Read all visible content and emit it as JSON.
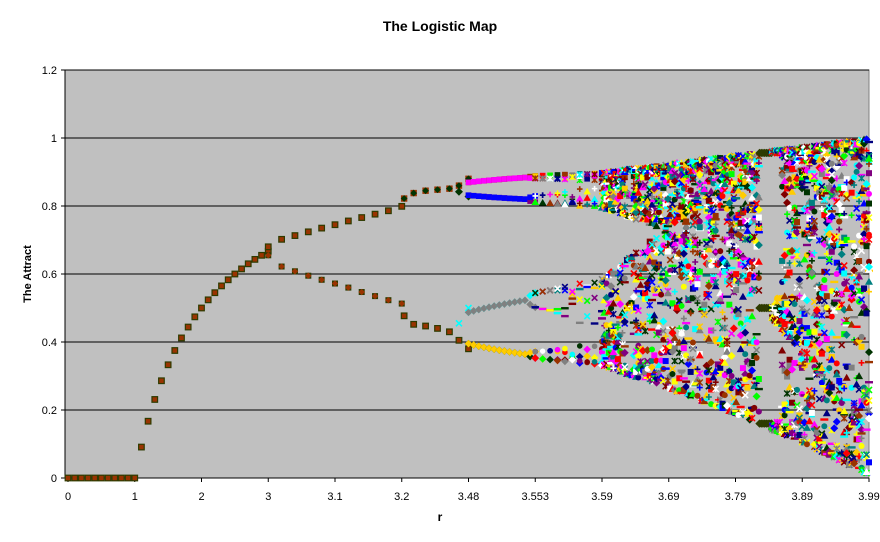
{
  "chart_data": {
    "type": "scatter",
    "title": "The Logistic Map",
    "xlabel": "r",
    "ylabel": "The Attract",
    "ylim": [
      0,
      1.2
    ],
    "yticks": [
      "0",
      "0.2",
      "0.4",
      "0.6",
      "0.8",
      "1",
      "1.2"
    ],
    "xticks": [
      "0",
      "1",
      "2",
      "3",
      "3.1",
      "3.2",
      "3.48",
      "3.553",
      "3.59",
      "3.69",
      "3.79",
      "3.89",
      "3.99"
    ],
    "grid": "horizontal major gridlines",
    "legend": "none",
    "plot_background": "#c0c0c0",
    "series_colors": [
      "#000080",
      "#ff00ff",
      "#ffff00",
      "#00ffff",
      "#800080",
      "#800000",
      "#008080",
      "#0000ff",
      "#ffcc00",
      "#ff0000",
      "#00ff00",
      "#003300",
      "#993300",
      "#808080",
      "#ffffff"
    ],
    "segments": [
      {
        "r_from": 0,
        "r_to": 1,
        "behavior": "fixed point at 0",
        "points": [
          [
            0,
            0
          ],
          [
            0.1,
            0
          ],
          [
            0.2,
            0
          ],
          [
            0.3,
            0
          ],
          [
            0.4,
            0
          ],
          [
            0.5,
            0
          ],
          [
            0.6,
            0
          ],
          [
            0.7,
            0
          ],
          [
            0.8,
            0
          ],
          [
            0.9,
            0
          ],
          [
            1.0,
            0
          ]
        ]
      },
      {
        "r_from": 1,
        "r_to": 3,
        "behavior": "single fixed point x = 1 - 1/r",
        "points": [
          [
            1.1,
            0.091
          ],
          [
            1.2,
            0.167
          ],
          [
            1.3,
            0.231
          ],
          [
            1.4,
            0.286
          ],
          [
            1.5,
            0.333
          ],
          [
            1.6,
            0.375
          ],
          [
            1.7,
            0.412
          ],
          [
            1.8,
            0.444
          ],
          [
            1.9,
            0.474
          ],
          [
            2.0,
            0.5
          ],
          [
            2.1,
            0.524
          ],
          [
            2.2,
            0.545
          ],
          [
            2.3,
            0.565
          ],
          [
            2.4,
            0.583
          ],
          [
            2.5,
            0.6
          ],
          [
            2.6,
            0.615
          ],
          [
            2.7,
            0.63
          ],
          [
            2.8,
            0.643
          ],
          [
            2.9,
            0.655
          ],
          [
            3.0,
            0.667
          ]
        ]
      },
      {
        "r_from": 3,
        "r_to": 3.2,
        "behavior": "period-2 branches",
        "upper": [
          [
            3.0,
            0.68
          ],
          [
            3.02,
            0.702
          ],
          [
            3.04,
            0.713
          ],
          [
            3.06,
            0.724
          ],
          [
            3.08,
            0.735
          ],
          [
            3.1,
            0.745
          ],
          [
            3.12,
            0.756
          ],
          [
            3.14,
            0.766
          ],
          [
            3.16,
            0.776
          ],
          [
            3.18,
            0.786
          ],
          [
            3.2,
            0.799
          ]
        ],
        "lower": [
          [
            3.0,
            0.655
          ],
          [
            3.02,
            0.622
          ],
          [
            3.04,
            0.608
          ],
          [
            3.06,
            0.595
          ],
          [
            3.08,
            0.583
          ],
          [
            3.1,
            0.572
          ],
          [
            3.12,
            0.56
          ],
          [
            3.14,
            0.547
          ],
          [
            3.16,
            0.535
          ],
          [
            3.18,
            0.523
          ],
          [
            3.2,
            0.513
          ]
        ]
      },
      {
        "r_from": 3.2,
        "r_to": 3.48,
        "behavior": "period-2 then period-4 splitting",
        "upper": [
          [
            3.21,
            0.822
          ],
          [
            3.25,
            0.838
          ],
          [
            3.3,
            0.845
          ],
          [
            3.35,
            0.848
          ],
          [
            3.4,
            0.851
          ],
          [
            3.44,
            0.86
          ],
          [
            3.48,
            0.88
          ]
        ],
        "upper_inner": [
          [
            3.44,
            0.842
          ],
          [
            3.48,
            0.828
          ]
        ],
        "lower": [
          [
            3.21,
            0.477
          ],
          [
            3.25,
            0.452
          ],
          [
            3.3,
            0.447
          ],
          [
            3.35,
            0.44
          ],
          [
            3.4,
            0.43
          ],
          [
            3.44,
            0.405
          ],
          [
            3.48,
            0.38
          ]
        ],
        "lower_inner": [
          [
            3.44,
            0.455
          ],
          [
            3.48,
            0.5
          ]
        ]
      },
      {
        "r_from": 3.48,
        "r_to": 3.553,
        "behavior": "period-4 to period-8",
        "branches": [
          [
            0.885,
            0.825
          ],
          [
            0.505,
            0.37
          ]
        ]
      },
      {
        "r_from": 3.553,
        "r_to": 3.59,
        "behavior": "period-8 to period-16",
        "branches": [
          [
            0.89,
            0.815,
            0.81,
            0.88
          ],
          [
            0.5,
            0.37,
            0.36,
            0.54
          ]
        ]
      },
      {
        "r_from": 3.59,
        "r_to": 3.99,
        "behavior": "chaos with periodic windows",
        "envelope_low": [
          [
            3.59,
            0.4
          ],
          [
            3.69,
            0.29
          ],
          [
            3.79,
            0.2
          ],
          [
            3.83,
            0.16
          ],
          [
            3.89,
            0.09
          ],
          [
            3.99,
            0.02
          ]
        ],
        "envelope_high": [
          [
            3.59,
            0.9
          ],
          [
            3.69,
            0.92
          ],
          [
            3.79,
            0.945
          ],
          [
            3.83,
            0.96
          ],
          [
            3.89,
            0.972
          ],
          [
            3.99,
            0.995
          ]
        ],
        "window": {
          "r": 3.83,
          "period": 3,
          "values": [
            0.956,
            0.5,
            0.16
          ]
        }
      }
    ]
  }
}
